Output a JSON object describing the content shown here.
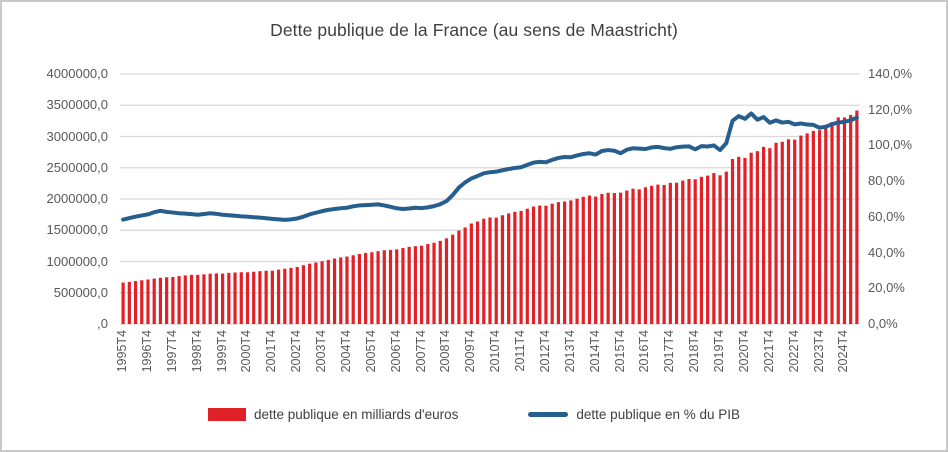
{
  "chart_data": {
    "type": "combo-bar-line",
    "title": "Dette publique de la France (au sens de Maastricht)",
    "x_tick_labels": [
      "1995T4",
      "1996T4",
      "1997T4",
      "1998T4",
      "1999T4",
      "2000T4",
      "2001T4",
      "2002T4",
      "2003T4",
      "2004T4",
      "2005T4",
      "2006T4",
      "2007T4",
      "2008T4",
      "2009T4",
      "2010T4",
      "2011T4",
      "2012T4",
      "2013T4",
      "2014T4",
      "2015T4",
      "2016T4",
      "2017T4",
      "2018T4",
      "2019T4",
      "2020T4",
      "2021T4",
      "2022T4",
      "2023T4",
      "2024T4"
    ],
    "x_tick_every_n_bars": 4,
    "x_is_quarterly": true,
    "y_axis_left": {
      "labels": [
        "4000000,0",
        "3500000,0",
        "3000000,0",
        "2500000,0",
        "2000000,0",
        "1500000,0",
        "1000000,0",
        "500000,0",
        ",0"
      ],
      "min": 0,
      "max": 4000000,
      "step": 500000,
      "unit": "millions d'euros"
    },
    "y_axis_right": {
      "labels": [
        "140,0%",
        "120,0%",
        "100,0%",
        "80,0%",
        "60,0%",
        "40,0%",
        "20,0%",
        "0,0%"
      ],
      "min": 0,
      "max": 140,
      "step": 20,
      "unit": "% du PIB"
    },
    "gridlines": {
      "horizontal": true,
      "color": "#d9d9d9"
    },
    "legend_position": "bottom",
    "series": [
      {
        "name": "dette publique en milliards d'euros",
        "type": "bar",
        "axis": "left",
        "color": "#e02127",
        "values": [
          663500,
          674000,
          687000,
          700000,
          712500,
          727000,
          740000,
          748000,
          752500,
          766000,
          778000,
          786000,
          787400,
          795000,
          805000,
          810000,
          806900,
          818000,
          824000,
          828000,
          827300,
          836000,
          845000,
          852000,
          853300,
          870000,
          885000,
          898000,
          912000,
          940000,
          965000,
          985000,
          1004000,
          1025000,
          1048000,
          1065000,
          1079500,
          1100000,
          1120000,
          1138000,
          1147600,
          1165000,
          1180000,
          1185000,
          1194100,
          1215000,
          1235000,
          1245000,
          1253300,
          1280000,
          1300000,
          1330000,
          1370300,
          1430000,
          1495000,
          1545000,
          1608000,
          1640000,
          1685000,
          1705000,
          1701100,
          1740000,
          1770000,
          1795000,
          1807900,
          1845000,
          1880000,
          1895000,
          1892500,
          1925000,
          1950000,
          1960000,
          1977700,
          2005000,
          2035000,
          2055000,
          2039900,
          2080000,
          2100000,
          2095000,
          2101300,
          2135000,
          2165000,
          2155000,
          2188500,
          2210000,
          2230000,
          2225000,
          2258700,
          2260000,
          2295000,
          2320000,
          2315300,
          2355000,
          2375000,
          2415000,
          2380100,
          2438000,
          2640000,
          2675000,
          2657900,
          2740000,
          2765000,
          2835000,
          2813100,
          2900000,
          2915000,
          2955000,
          2950000,
          3015000,
          3050000,
          3090000,
          3101200,
          3160000,
          3230000,
          3305000,
          3305300,
          3345800,
          3416300
        ]
      },
      {
        "name": "dette publique en % du PIB",
        "type": "line",
        "axis": "right",
        "color": "#265e8d",
        "values": [
          58.5,
          59.3,
          60.1,
          60.8,
          61.4,
          62.6,
          63.4,
          62.8,
          62.4,
          62.0,
          61.8,
          61.5,
          61.2,
          61.6,
          62.0,
          61.7,
          61.2,
          60.9,
          60.6,
          60.3,
          60.1,
          59.8,
          59.6,
          59.2,
          58.9,
          58.6,
          58.3,
          58.6,
          59.1,
          60.1,
          61.4,
          62.3,
          63.2,
          63.9,
          64.4,
          64.8,
          65.1,
          65.9,
          66.4,
          66.6,
          66.8,
          67.0,
          66.4,
          65.6,
          64.8,
          64.4,
          64.7,
          65.1,
          64.9,
          65.3,
          66.0,
          67.1,
          68.8,
          72.2,
          76.4,
          79.3,
          81.5,
          82.9,
          84.4,
          85.0,
          85.3,
          86.1,
          86.8,
          87.4,
          87.8,
          89.1,
          90.4,
          90.8,
          90.6,
          91.9,
          93.0,
          93.5,
          93.4,
          94.4,
          95.2,
          95.6,
          94.9,
          96.9,
          97.4,
          97.0,
          95.6,
          97.6,
          98.4,
          98.2,
          98.0,
          98.9,
          99.2,
          98.5,
          98.1,
          99.0,
          99.3,
          99.5,
          97.8,
          99.6,
          99.4,
          100.0,
          97.4,
          101.3,
          113.8,
          116.4,
          114.9,
          117.9,
          114.4,
          115.9,
          112.7,
          114.0,
          112.8,
          113.2,
          111.8,
          112.3,
          111.7,
          111.5,
          109.9,
          110.5,
          111.9,
          112.8,
          113.2,
          114.1,
          115.6
        ]
      }
    ]
  },
  "colors": {
    "bar": "#e02127",
    "line": "#265e8d",
    "gridline": "#d9d9d9",
    "axis_text": "#595959",
    "title_text": "#404040",
    "frame_border": "#c9c9c9"
  }
}
